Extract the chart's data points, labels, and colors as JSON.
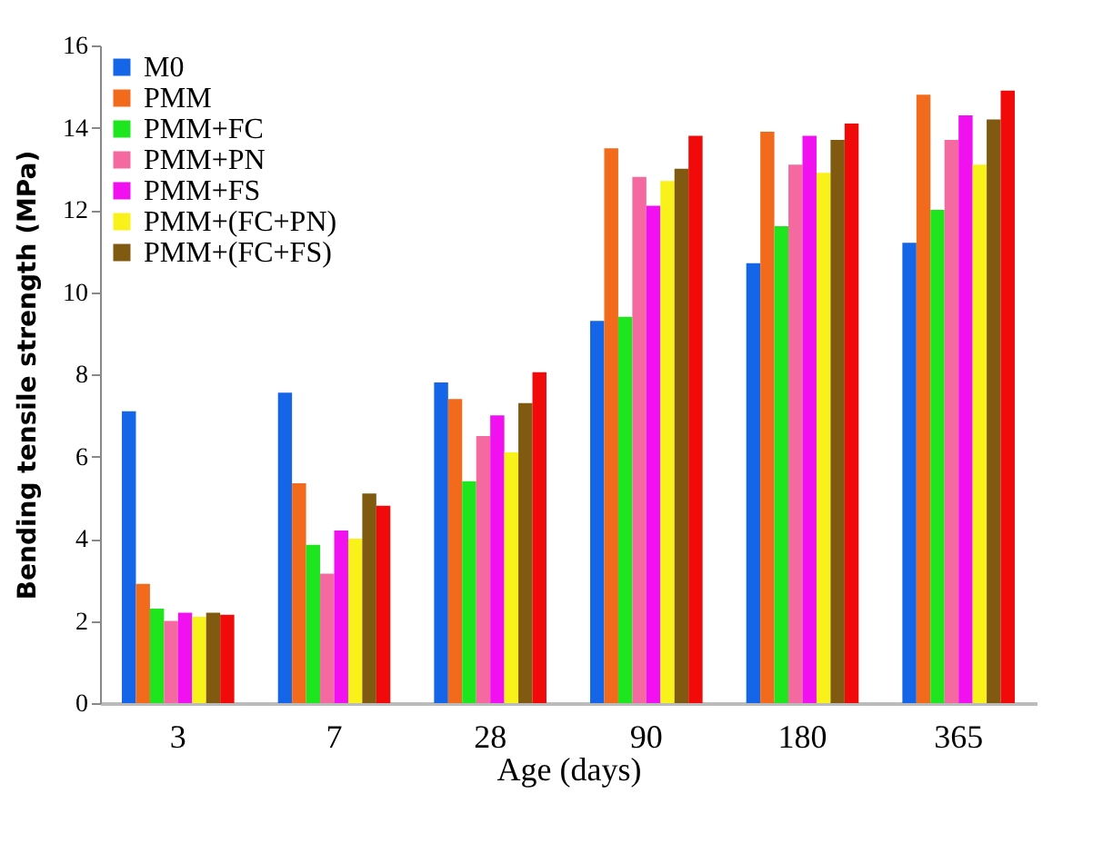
{
  "chart_data": {
    "type": "bar",
    "xlabel": "Age (days)",
    "ylabel": "Bending tensile strength  (MPa)",
    "categories": [
      "3",
      "7",
      "28",
      "90",
      "180",
      "365"
    ],
    "series": [
      {
        "name": "M0",
        "color": "#1565e8",
        "values": [
          7.1,
          7.55,
          7.8,
          9.3,
          10.7,
          11.2
        ]
      },
      {
        "name": "PMM",
        "color": "#f26b1d",
        "values": [
          2.9,
          5.35,
          7.4,
          13.5,
          13.9,
          14.8
        ]
      },
      {
        "name": "PMM+FC",
        "color": "#1ee61e",
        "values": [
          2.3,
          3.85,
          5.4,
          9.4,
          11.6,
          12.0
        ]
      },
      {
        "name": "PMM+PN",
        "color": "#f46aa0",
        "values": [
          2.0,
          3.15,
          6.5,
          12.8,
          13.1,
          13.7
        ]
      },
      {
        "name": "PMM+FS",
        "color": "#f010f0",
        "values": [
          2.2,
          4.2,
          7.0,
          12.1,
          13.8,
          14.3
        ]
      },
      {
        "name": "PMM+(FC+PN)",
        "color": "#f8f21a",
        "values": [
          2.1,
          4.0,
          6.1,
          12.7,
          12.9,
          13.1
        ]
      },
      {
        "name": "PMM+(FC+FS)",
        "color": "#7f5a10",
        "values": [
          2.2,
          5.1,
          7.3,
          13.0,
          13.7,
          14.2
        ]
      },
      {
        "color": "#f00a0a",
        "values": [
          2.15,
          4.8,
          8.05,
          13.8,
          14.1,
          14.9
        ]
      }
    ],
    "ylim": [
      0,
      16
    ],
    "yticks": [
      0,
      2,
      4,
      6,
      8,
      10,
      12,
      14,
      16
    ],
    "grid": false,
    "legend": "top left"
  }
}
